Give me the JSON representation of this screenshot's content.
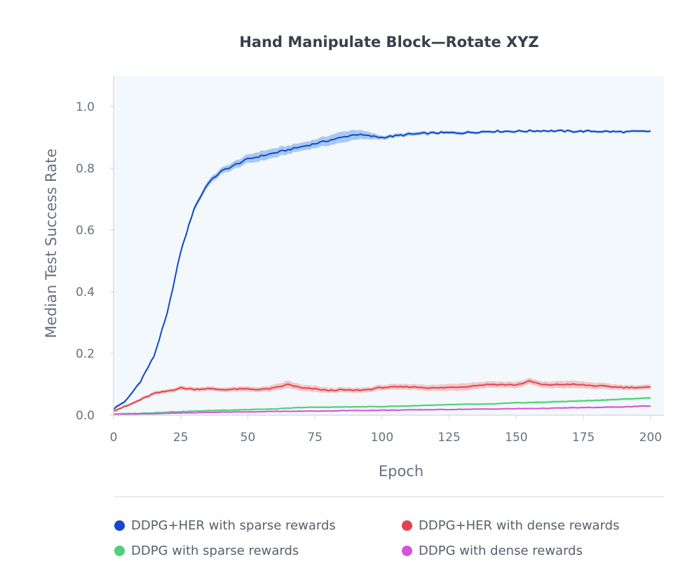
{
  "chart_data": {
    "type": "line",
    "title": "Hand Manipulate Block—Rotate XYZ",
    "xlabel": "Epoch",
    "ylabel": "Median Test Success Rate",
    "xlim": [
      0,
      205
    ],
    "ylim": [
      0,
      1.1
    ],
    "xticks": [
      0,
      25,
      50,
      75,
      100,
      125,
      150,
      175,
      200
    ],
    "yticks": [
      0.0,
      0.2,
      0.4,
      0.6,
      0.8,
      1.0
    ],
    "xtick_labels": [
      "0",
      "25",
      "50",
      "75",
      "100",
      "125",
      "150",
      "175",
      "200"
    ],
    "ytick_labels": [
      "0.0",
      "0.2",
      "0.4",
      "0.6",
      "0.8",
      "1.0"
    ],
    "grid": false,
    "legend_position": "bottom",
    "series": [
      {
        "name": "DDPG+HER with sparse rewards",
        "color": "#1449c8",
        "band_color": "#8fb8ee",
        "x": [
          0,
          5,
          10,
          15,
          20,
          25,
          30,
          35,
          40,
          45,
          50,
          55,
          60,
          65,
          70,
          75,
          80,
          85,
          90,
          95,
          100,
          110,
          120,
          130,
          140,
          150,
          160,
          170,
          180,
          190,
          200
        ],
        "y": [
          0.02,
          0.05,
          0.11,
          0.19,
          0.33,
          0.53,
          0.67,
          0.75,
          0.79,
          0.81,
          0.83,
          0.84,
          0.85,
          0.86,
          0.87,
          0.88,
          0.89,
          0.9,
          0.91,
          0.905,
          0.9,
          0.91,
          0.915,
          0.915,
          0.92,
          0.92,
          0.922,
          0.92,
          0.92,
          0.918,
          0.92
        ],
        "band": [
          0.004,
          0.004,
          0.005,
          0.005,
          0.006,
          0.007,
          0.008,
          0.01,
          0.01,
          0.012,
          0.014,
          0.016,
          0.015,
          0.014,
          0.013,
          0.014,
          0.016,
          0.018,
          0.016,
          0.012,
          0.006,
          0.006,
          0.005,
          0.005,
          0.004,
          0.004,
          0.004,
          0.004,
          0.004,
          0.004,
          0.004
        ]
      },
      {
        "name": "DDPG+HER with dense rewards",
        "color": "#e2444f",
        "band_color": "#f3b6b6",
        "x": [
          0,
          5,
          10,
          15,
          20,
          25,
          30,
          35,
          40,
          45,
          50,
          55,
          60,
          65,
          70,
          75,
          80,
          85,
          90,
          95,
          100,
          110,
          120,
          130,
          140,
          150,
          155,
          160,
          170,
          180,
          190,
          200
        ],
        "y": [
          0.015,
          0.03,
          0.05,
          0.07,
          0.078,
          0.088,
          0.084,
          0.086,
          0.083,
          0.084,
          0.085,
          0.083,
          0.088,
          0.1,
          0.088,
          0.085,
          0.08,
          0.082,
          0.08,
          0.083,
          0.09,
          0.092,
          0.088,
          0.092,
          0.1,
          0.098,
          0.11,
          0.098,
          0.1,
          0.095,
          0.09,
          0.09
        ],
        "band": [
          0.003,
          0.004,
          0.005,
          0.006,
          0.006,
          0.007,
          0.007,
          0.007,
          0.007,
          0.008,
          0.008,
          0.008,
          0.01,
          0.012,
          0.01,
          0.01,
          0.008,
          0.008,
          0.008,
          0.008,
          0.009,
          0.009,
          0.01,
          0.012,
          0.01,
          0.01,
          0.01,
          0.01,
          0.012,
          0.01,
          0.008,
          0.008
        ]
      },
      {
        "name": "DDPG with sparse rewards",
        "color": "#4fd07b",
        "band_color": "#bdebc9",
        "x": [
          0,
          10,
          20,
          30,
          40,
          50,
          60,
          70,
          80,
          90,
          100,
          110,
          120,
          130,
          140,
          150,
          160,
          170,
          180,
          190,
          200
        ],
        "y": [
          0.004,
          0.006,
          0.01,
          0.013,
          0.016,
          0.018,
          0.02,
          0.025,
          0.026,
          0.027,
          0.028,
          0.03,
          0.033,
          0.035,
          0.036,
          0.04,
          0.042,
          0.045,
          0.048,
          0.052,
          0.056
        ],
        "band": [
          0.002,
          0.002,
          0.003,
          0.003,
          0.003,
          0.003,
          0.003,
          0.003,
          0.003,
          0.003,
          0.003,
          0.003,
          0.003,
          0.003,
          0.003,
          0.003,
          0.004,
          0.004,
          0.004,
          0.004,
          0.004
        ]
      },
      {
        "name": "DDPG with dense rewards",
        "color": "#d354d8",
        "band_color": "#efc0f1",
        "x": [
          0,
          10,
          20,
          30,
          40,
          50,
          60,
          70,
          80,
          90,
          100,
          110,
          120,
          130,
          140,
          150,
          160,
          170,
          180,
          190,
          200
        ],
        "y": [
          0.002,
          0.004,
          0.006,
          0.008,
          0.01,
          0.011,
          0.012,
          0.013,
          0.014,
          0.015,
          0.016,
          0.017,
          0.018,
          0.019,
          0.02,
          0.021,
          0.022,
          0.024,
          0.025,
          0.027,
          0.03
        ],
        "band": [
          0.001,
          0.001,
          0.002,
          0.002,
          0.002,
          0.002,
          0.002,
          0.002,
          0.002,
          0.002,
          0.002,
          0.002,
          0.002,
          0.002,
          0.002,
          0.002,
          0.002,
          0.003,
          0.003,
          0.003,
          0.003
        ]
      }
    ]
  },
  "colors": {
    "plot_background": "#f3f8fc",
    "axis": "#cfd6e0",
    "text": "#6b7080"
  }
}
